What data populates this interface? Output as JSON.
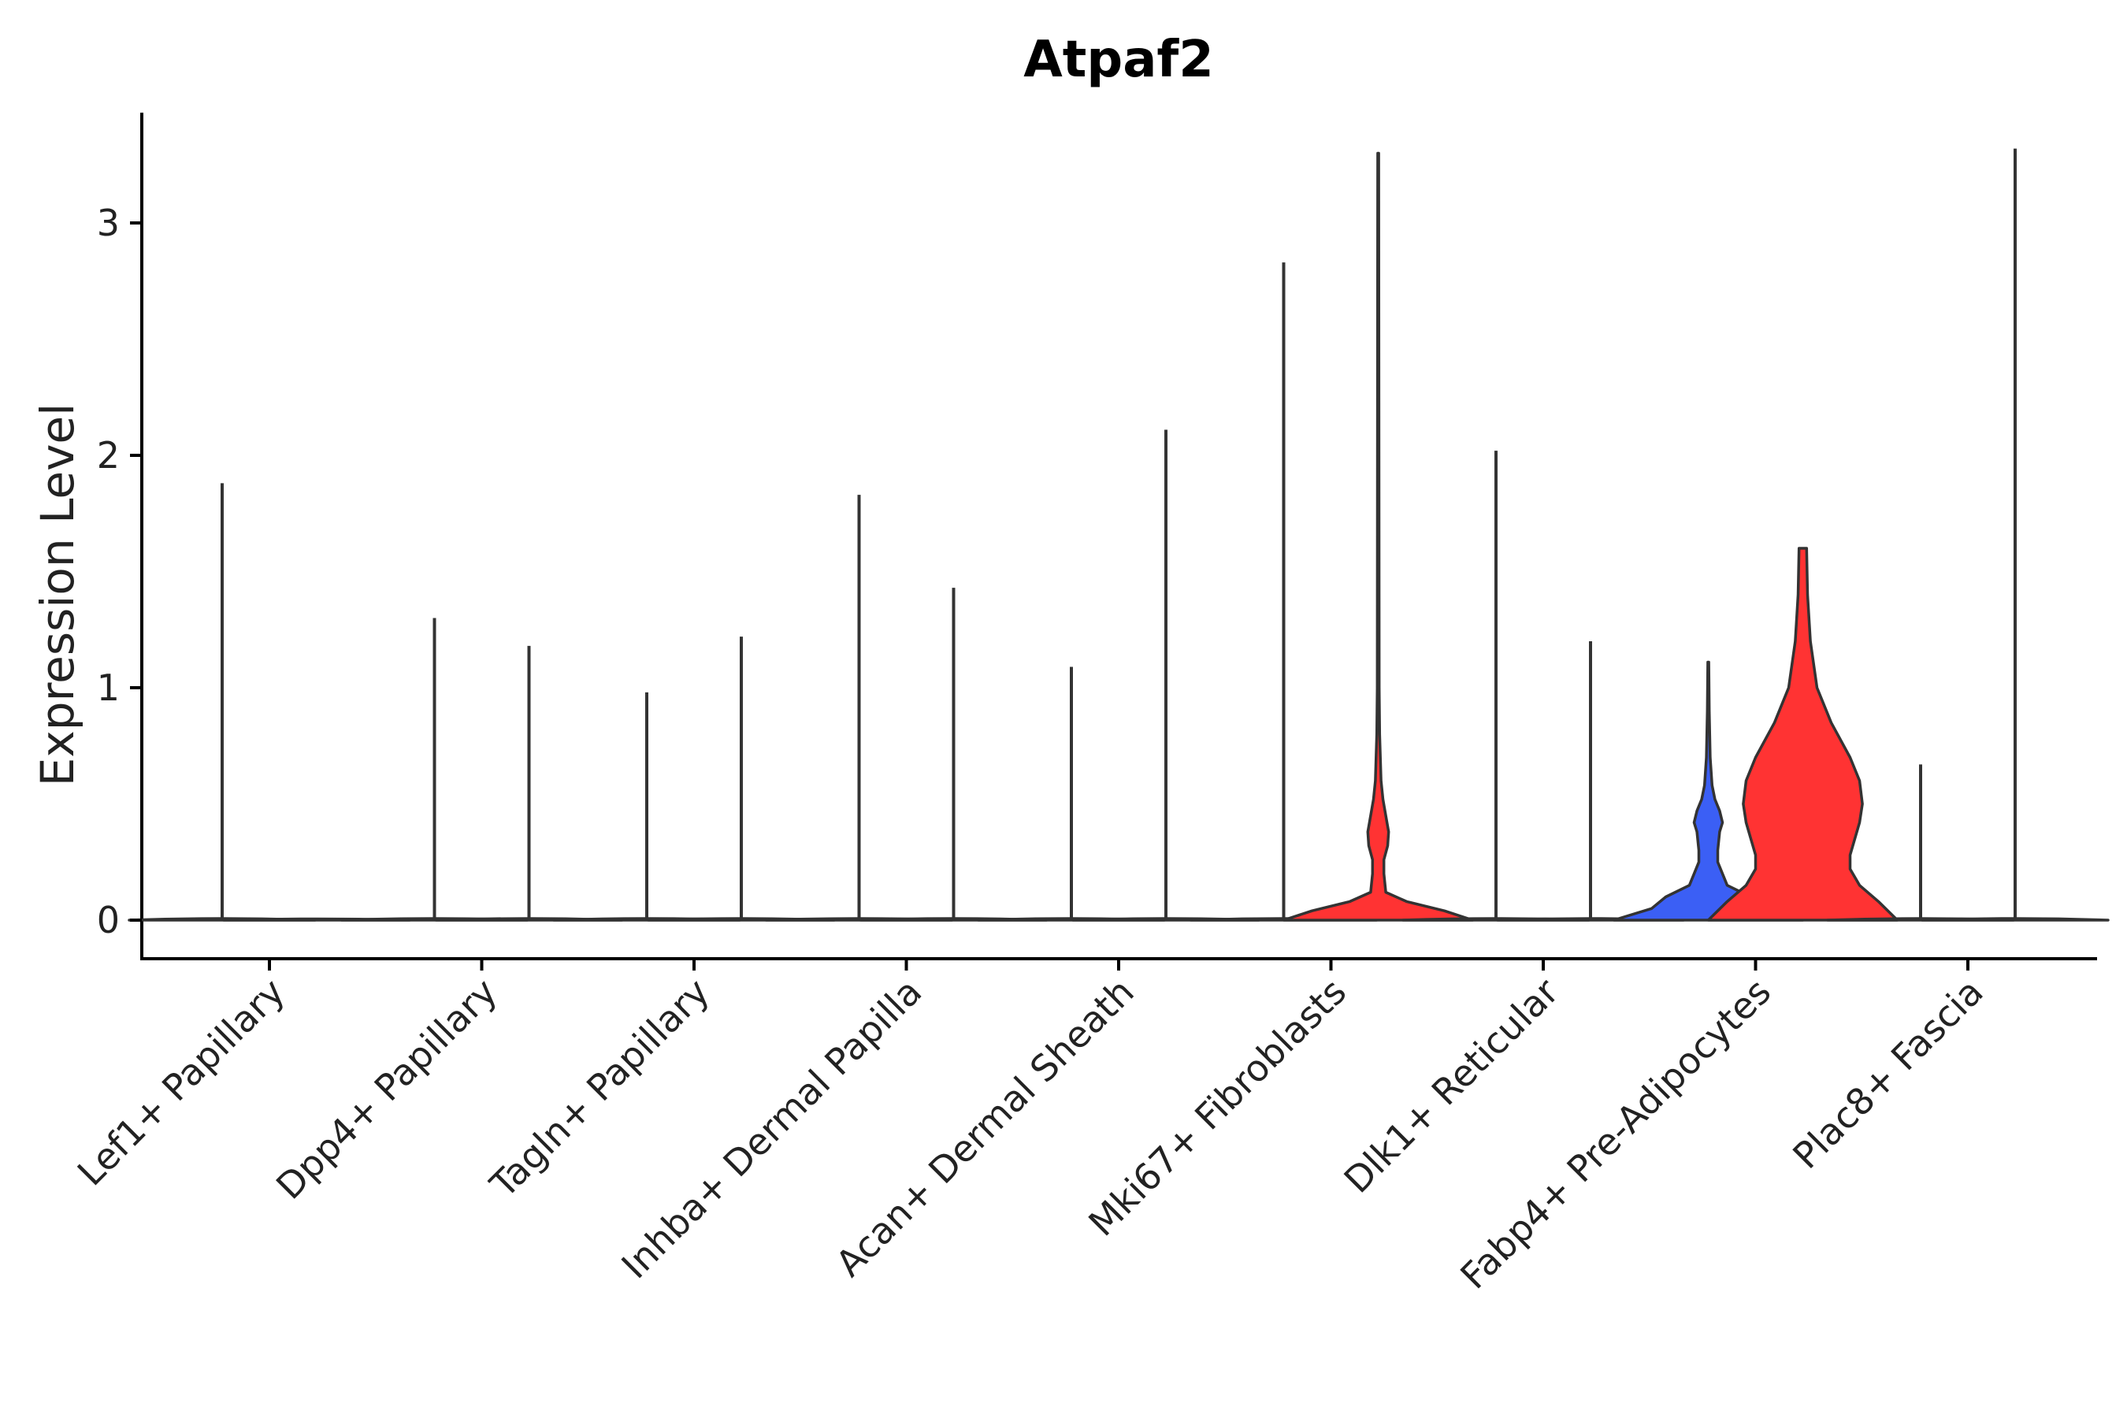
{
  "chart_data": {
    "type": "violin",
    "title": "Atpaf2",
    "xlabel": "",
    "ylabel": "Expression Level",
    "ylim": [
      -0.17,
      3.5
    ],
    "yticks": [
      0,
      1,
      2,
      3
    ],
    "grid": false,
    "legend": "none",
    "split_colors": {
      "left": "#3b5ff5",
      "right": "#ff3333",
      "default": "#ffffff"
    },
    "categories": [
      "Lef1+ Papillary",
      "Dpp4+ Papillary",
      "Tagln+ Papillary",
      "Inhba+ Dermal Papilla",
      "Acan+ Dermal Sheath",
      "Mki67+ Fibroblasts",
      "Dlk1+ Reticular",
      "Fabp4+ Pre-Adipocytes",
      "Plac8+ Fascia"
    ],
    "series": [
      {
        "name": "left",
        "max": [
          1.88,
          1.3,
          0.98,
          1.83,
          1.09,
          2.83,
          2.02,
          1.11,
          0.67
        ],
        "density": [
          null,
          null,
          null,
          null,
          null,
          null,
          null,
          [
            [
              0,
              1.0
            ],
            [
              0.05,
              0.6
            ],
            [
              0.1,
              0.45
            ],
            [
              0.15,
              0.2
            ],
            [
              0.25,
              0.1
            ],
            [
              0.3,
              0.1
            ],
            [
              0.38,
              0.12
            ],
            [
              0.42,
              0.15
            ],
            [
              0.47,
              0.12
            ],
            [
              0.52,
              0.07
            ],
            [
              0.58,
              0.04
            ],
            [
              0.7,
              0.02
            ],
            [
              0.9,
              0.01
            ],
            [
              1.11,
              0.005
            ]
          ],
          null
        ]
      },
      {
        "name": "right",
        "max": [
          0.0,
          1.18,
          1.22,
          1.43,
          2.11,
          3.3,
          1.2,
          1.6,
          3.32
        ],
        "density": [
          null,
          null,
          null,
          null,
          null,
          [
            [
              0,
              1.0
            ],
            [
              0.04,
              0.7
            ],
            [
              0.08,
              0.3
            ],
            [
              0.12,
              0.08
            ],
            [
              0.2,
              0.06
            ],
            [
              0.26,
              0.06
            ],
            [
              0.32,
              0.1
            ],
            [
              0.38,
              0.11
            ],
            [
              0.45,
              0.08
            ],
            [
              0.52,
              0.05
            ],
            [
              0.6,
              0.03
            ],
            [
              0.8,
              0.015
            ],
            [
              1.0,
              0.01
            ],
            [
              3.3,
              0.005
            ]
          ],
          null,
          [
            [
              0,
              1.0
            ],
            [
              0.08,
              0.8
            ],
            [
              0.15,
              0.6
            ],
            [
              0.22,
              0.5
            ],
            [
              0.28,
              0.5
            ],
            [
              0.35,
              0.55
            ],
            [
              0.42,
              0.6
            ],
            [
              0.5,
              0.63
            ],
            [
              0.6,
              0.6
            ],
            [
              0.7,
              0.5
            ],
            [
              0.85,
              0.3
            ],
            [
              1.0,
              0.15
            ],
            [
              1.2,
              0.08
            ],
            [
              1.4,
              0.05
            ],
            [
              1.6,
              0.04
            ]
          ],
          null
        ]
      }
    ]
  }
}
